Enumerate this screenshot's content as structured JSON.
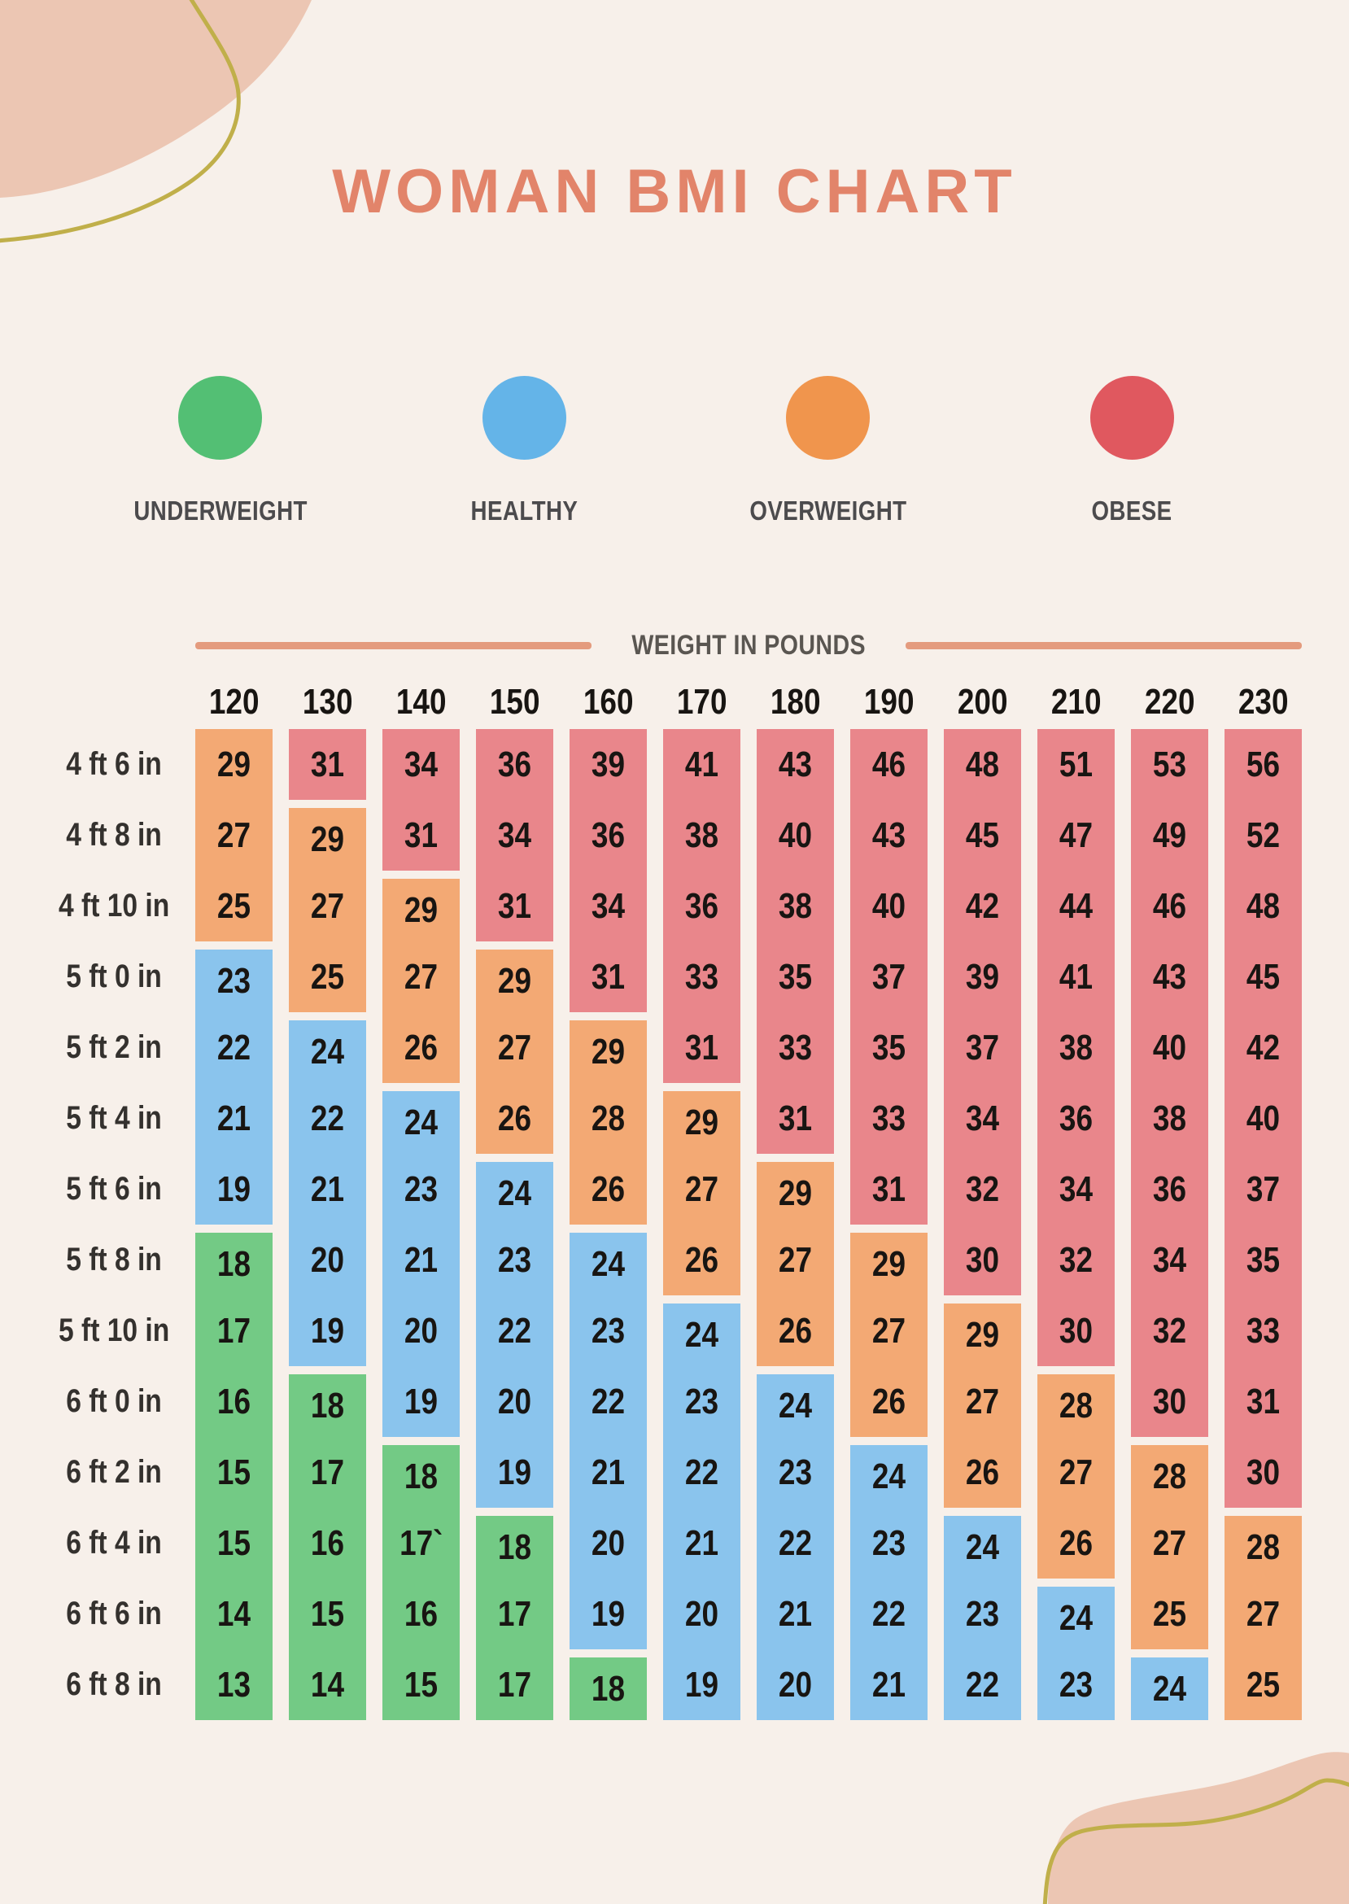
{
  "page": {
    "title": "WOMAN BMI CHART"
  },
  "colors": {
    "background": "#f7f0ea",
    "title": "#e2846a",
    "divider_line": "#e49b7e",
    "axis_text": "#5a5651",
    "legend_text": "#4c4b4d",
    "blob_pink": "#ecc6b3",
    "blob_line_gold": "#c0af4a",
    "legend": {
      "underweight": "#53bf74",
      "healthy": "#64b4e8",
      "overweight": "#f0954d",
      "obese": "#e0585f"
    },
    "cells": {
      "underweight": "#73ca85",
      "healthy": "#8ac4ed",
      "overweight": "#f3a974",
      "obese": "#e9868b"
    }
  },
  "legend": {
    "items": [
      {
        "id": "underweight",
        "label": "UNDERWEIGHT"
      },
      {
        "id": "healthy",
        "label": "HEALTHY"
      },
      {
        "id": "overweight",
        "label": "OVERWEIGHT"
      },
      {
        "id": "obese",
        "label": "OBESE"
      }
    ]
  },
  "table": {
    "axis_title": "WEIGHT IN POUNDS",
    "category_map": {
      "U": "underweight",
      "H": "healthy",
      "O": "overweight",
      "R": "obese"
    },
    "weights": [
      "120",
      "130",
      "140",
      "150",
      "160",
      "170",
      "180",
      "190",
      "200",
      "210",
      "220",
      "230"
    ],
    "rows": [
      {
        "height": "4 ft 6 in",
        "cells": [
          [
            "29",
            "O"
          ],
          [
            "31",
            "R"
          ],
          [
            "34",
            "R"
          ],
          [
            "36",
            "R"
          ],
          [
            "39",
            "R"
          ],
          [
            "41",
            "R"
          ],
          [
            "43",
            "R"
          ],
          [
            "46",
            "R"
          ],
          [
            "48",
            "R"
          ],
          [
            "51",
            "R"
          ],
          [
            "53",
            "R"
          ],
          [
            "56",
            "R"
          ]
        ]
      },
      {
        "height": "4 ft 8 in",
        "cells": [
          [
            "27",
            "O"
          ],
          [
            "29",
            "O"
          ],
          [
            "31",
            "R"
          ],
          [
            "34",
            "R"
          ],
          [
            "36",
            "R"
          ],
          [
            "38",
            "R"
          ],
          [
            "40",
            "R"
          ],
          [
            "43",
            "R"
          ],
          [
            "45",
            "R"
          ],
          [
            "47",
            "R"
          ],
          [
            "49",
            "R"
          ],
          [
            "52",
            "R"
          ]
        ]
      },
      {
        "height": "4 ft 10 in",
        "cells": [
          [
            "25",
            "O"
          ],
          [
            "27",
            "O"
          ],
          [
            "29",
            "O"
          ],
          [
            "31",
            "R"
          ],
          [
            "34",
            "R"
          ],
          [
            "36",
            "R"
          ],
          [
            "38",
            "R"
          ],
          [
            "40",
            "R"
          ],
          [
            "42",
            "R"
          ],
          [
            "44",
            "R"
          ],
          [
            "46",
            "R"
          ],
          [
            "48",
            "R"
          ]
        ]
      },
      {
        "height": "5 ft 0 in",
        "cells": [
          [
            "23",
            "H"
          ],
          [
            "25",
            "O"
          ],
          [
            "27",
            "O"
          ],
          [
            "29",
            "O"
          ],
          [
            "31",
            "R"
          ],
          [
            "33",
            "R"
          ],
          [
            "35",
            "R"
          ],
          [
            "37",
            "R"
          ],
          [
            "39",
            "R"
          ],
          [
            "41",
            "R"
          ],
          [
            "43",
            "R"
          ],
          [
            "45",
            "R"
          ]
        ]
      },
      {
        "height": "5 ft 2 in",
        "cells": [
          [
            "22",
            "H"
          ],
          [
            "24",
            "H"
          ],
          [
            "26",
            "O"
          ],
          [
            "27",
            "O"
          ],
          [
            "29",
            "O"
          ],
          [
            "31",
            "R"
          ],
          [
            "33",
            "R"
          ],
          [
            "35",
            "R"
          ],
          [
            "37",
            "R"
          ],
          [
            "38",
            "R"
          ],
          [
            "40",
            "R"
          ],
          [
            "42",
            "R"
          ]
        ]
      },
      {
        "height": "5 ft 4 in",
        "cells": [
          [
            "21",
            "H"
          ],
          [
            "22",
            "H"
          ],
          [
            "24",
            "H"
          ],
          [
            "26",
            "O"
          ],
          [
            "28",
            "O"
          ],
          [
            "29",
            "O"
          ],
          [
            "31",
            "R"
          ],
          [
            "33",
            "R"
          ],
          [
            "34",
            "R"
          ],
          [
            "36",
            "R"
          ],
          [
            "38",
            "R"
          ],
          [
            "40",
            "R"
          ]
        ]
      },
      {
        "height": "5 ft 6 in",
        "cells": [
          [
            "19",
            "H"
          ],
          [
            "21",
            "H"
          ],
          [
            "23",
            "H"
          ],
          [
            "24",
            "H"
          ],
          [
            "26",
            "O"
          ],
          [
            "27",
            "O"
          ],
          [
            "29",
            "O"
          ],
          [
            "31",
            "R"
          ],
          [
            "32",
            "R"
          ],
          [
            "34",
            "R"
          ],
          [
            "36",
            "R"
          ],
          [
            "37",
            "R"
          ]
        ]
      },
      {
        "height": "5 ft 8 in",
        "cells": [
          [
            "18",
            "U"
          ],
          [
            "20",
            "H"
          ],
          [
            "21",
            "H"
          ],
          [
            "23",
            "H"
          ],
          [
            "24",
            "H"
          ],
          [
            "26",
            "O"
          ],
          [
            "27",
            "O"
          ],
          [
            "29",
            "O"
          ],
          [
            "30",
            "R"
          ],
          [
            "32",
            "R"
          ],
          [
            "34",
            "R"
          ],
          [
            "35",
            "R"
          ]
        ]
      },
      {
        "height": "5 ft 10 in",
        "cells": [
          [
            "17",
            "U"
          ],
          [
            "19",
            "H"
          ],
          [
            "20",
            "H"
          ],
          [
            "22",
            "H"
          ],
          [
            "23",
            "H"
          ],
          [
            "24",
            "H"
          ],
          [
            "26",
            "O"
          ],
          [
            "27",
            "O"
          ],
          [
            "29",
            "O"
          ],
          [
            "30",
            "R"
          ],
          [
            "32",
            "R"
          ],
          [
            "33",
            "R"
          ]
        ]
      },
      {
        "height": "6 ft 0 in",
        "cells": [
          [
            "16",
            "U"
          ],
          [
            "18",
            "U"
          ],
          [
            "19",
            "H"
          ],
          [
            "20",
            "H"
          ],
          [
            "22",
            "H"
          ],
          [
            "23",
            "H"
          ],
          [
            "24",
            "H"
          ],
          [
            "26",
            "O"
          ],
          [
            "27",
            "O"
          ],
          [
            "28",
            "O"
          ],
          [
            "30",
            "R"
          ],
          [
            "31",
            "R"
          ]
        ]
      },
      {
        "height": "6 ft 2 in",
        "cells": [
          [
            "15",
            "U"
          ],
          [
            "17",
            "U"
          ],
          [
            "18",
            "U"
          ],
          [
            "19",
            "H"
          ],
          [
            "21",
            "H"
          ],
          [
            "22",
            "H"
          ],
          [
            "23",
            "H"
          ],
          [
            "24",
            "H"
          ],
          [
            "26",
            "O"
          ],
          [
            "27",
            "O"
          ],
          [
            "28",
            "O"
          ],
          [
            "30",
            "R"
          ]
        ]
      },
      {
        "height": "6 ft 4 in",
        "cells": [
          [
            "15",
            "U"
          ],
          [
            "16",
            "U"
          ],
          [
            "17`",
            "U"
          ],
          [
            "18",
            "U"
          ],
          [
            "20",
            "H"
          ],
          [
            "21",
            "H"
          ],
          [
            "22",
            "H"
          ],
          [
            "23",
            "H"
          ],
          [
            "24",
            "H"
          ],
          [
            "26",
            "O"
          ],
          [
            "27",
            "O"
          ],
          [
            "28",
            "O"
          ]
        ]
      },
      {
        "height": "6 ft 6 in",
        "cells": [
          [
            "14",
            "U"
          ],
          [
            "15",
            "U"
          ],
          [
            "16",
            "U"
          ],
          [
            "17",
            "U"
          ],
          [
            "19",
            "H"
          ],
          [
            "20",
            "H"
          ],
          [
            "21",
            "H"
          ],
          [
            "22",
            "H"
          ],
          [
            "23",
            "H"
          ],
          [
            "24",
            "H"
          ],
          [
            "25",
            "O"
          ],
          [
            "27",
            "O"
          ]
        ]
      },
      {
        "height": "6 ft 8 in",
        "cells": [
          [
            "13",
            "U"
          ],
          [
            "14",
            "U"
          ],
          [
            "15",
            "U"
          ],
          [
            "17",
            "U"
          ],
          [
            "18",
            "U"
          ],
          [
            "19",
            "H"
          ],
          [
            "20",
            "H"
          ],
          [
            "21",
            "H"
          ],
          [
            "22",
            "H"
          ],
          [
            "23",
            "H"
          ],
          [
            "24",
            "H"
          ],
          [
            "25",
            "O"
          ]
        ]
      }
    ]
  },
  "chart_data": {
    "type": "heatmap",
    "title": "WOMAN BMI CHART",
    "x_label": "WEIGHT IN POUNDS",
    "x_categories": [
      120,
      130,
      140,
      150,
      160,
      170,
      180,
      190,
      200,
      210,
      220,
      230
    ],
    "y_categories": [
      "4 ft 6 in",
      "4 ft 8 in",
      "4 ft 10 in",
      "5 ft 0 in",
      "5 ft 2 in",
      "5 ft 4 in",
      "5 ft 6 in",
      "5 ft 8 in",
      "5 ft 10 in",
      "6 ft 0 in",
      "6 ft 2 in",
      "6 ft 4 in",
      "6 ft 6 in",
      "6 ft 8 in"
    ],
    "values": [
      [
        29,
        31,
        34,
        36,
        39,
        41,
        43,
        46,
        48,
        51,
        53,
        56
      ],
      [
        27,
        29,
        31,
        34,
        36,
        38,
        40,
        43,
        45,
        47,
        49,
        52
      ],
      [
        25,
        27,
        29,
        31,
        34,
        36,
        38,
        40,
        42,
        44,
        46,
        48
      ],
      [
        23,
        25,
        27,
        29,
        31,
        33,
        35,
        37,
        39,
        41,
        43,
        45
      ],
      [
        22,
        24,
        26,
        27,
        29,
        31,
        33,
        35,
        37,
        38,
        40,
        42
      ],
      [
        21,
        22,
        24,
        26,
        28,
        29,
        31,
        33,
        34,
        36,
        38,
        40
      ],
      [
        19,
        21,
        23,
        24,
        26,
        27,
        29,
        31,
        32,
        34,
        36,
        37
      ],
      [
        18,
        20,
        21,
        23,
        24,
        26,
        27,
        29,
        30,
        32,
        34,
        35
      ],
      [
        17,
        19,
        20,
        22,
        23,
        24,
        26,
        27,
        29,
        30,
        32,
        33
      ],
      [
        16,
        18,
        19,
        20,
        22,
        23,
        24,
        26,
        27,
        28,
        30,
        31
      ],
      [
        15,
        17,
        18,
        19,
        21,
        22,
        23,
        24,
        26,
        27,
        28,
        30
      ],
      [
        15,
        16,
        17,
        18,
        20,
        21,
        22,
        23,
        24,
        26,
        27,
        28
      ],
      [
        14,
        15,
        16,
        17,
        19,
        20,
        21,
        22,
        23,
        24,
        25,
        27
      ],
      [
        13,
        14,
        15,
        17,
        18,
        19,
        20,
        21,
        22,
        23,
        24,
        25
      ]
    ],
    "cell_categories": [
      [
        "O",
        "R",
        "R",
        "R",
        "R",
        "R",
        "R",
        "R",
        "R",
        "R",
        "R",
        "R"
      ],
      [
        "O",
        "O",
        "R",
        "R",
        "R",
        "R",
        "R",
        "R",
        "R",
        "R",
        "R",
        "R"
      ],
      [
        "O",
        "O",
        "O",
        "R",
        "R",
        "R",
        "R",
        "R",
        "R",
        "R",
        "R",
        "R"
      ],
      [
        "H",
        "O",
        "O",
        "O",
        "R",
        "R",
        "R",
        "R",
        "R",
        "R",
        "R",
        "R"
      ],
      [
        "H",
        "H",
        "O",
        "O",
        "O",
        "R",
        "R",
        "R",
        "R",
        "R",
        "R",
        "R"
      ],
      [
        "H",
        "H",
        "H",
        "O",
        "O",
        "O",
        "R",
        "R",
        "R",
        "R",
        "R",
        "R"
      ],
      [
        "H",
        "H",
        "H",
        "H",
        "O",
        "O",
        "O",
        "R",
        "R",
        "R",
        "R",
        "R"
      ],
      [
        "U",
        "H",
        "H",
        "H",
        "H",
        "O",
        "O",
        "O",
        "R",
        "R",
        "R",
        "R"
      ],
      [
        "U",
        "H",
        "H",
        "H",
        "H",
        "H",
        "O",
        "O",
        "O",
        "R",
        "R",
        "R"
      ],
      [
        "U",
        "U",
        "H",
        "H",
        "H",
        "H",
        "H",
        "O",
        "O",
        "O",
        "R",
        "R"
      ],
      [
        "U",
        "U",
        "U",
        "H",
        "H",
        "H",
        "H",
        "H",
        "O",
        "O",
        "O",
        "R"
      ],
      [
        "U",
        "U",
        "U",
        "U",
        "H",
        "H",
        "H",
        "H",
        "H",
        "O",
        "O",
        "O"
      ],
      [
        "U",
        "U",
        "U",
        "U",
        "H",
        "H",
        "H",
        "H",
        "H",
        "H",
        "O",
        "O"
      ],
      [
        "U",
        "U",
        "U",
        "U",
        "U",
        "H",
        "H",
        "H",
        "H",
        "H",
        "H",
        "O"
      ]
    ],
    "legend": [
      "UNDERWEIGHT",
      "HEALTHY",
      "OVERWEIGHT",
      "OBESE"
    ],
    "legend_position": "top",
    "grid": false
  }
}
